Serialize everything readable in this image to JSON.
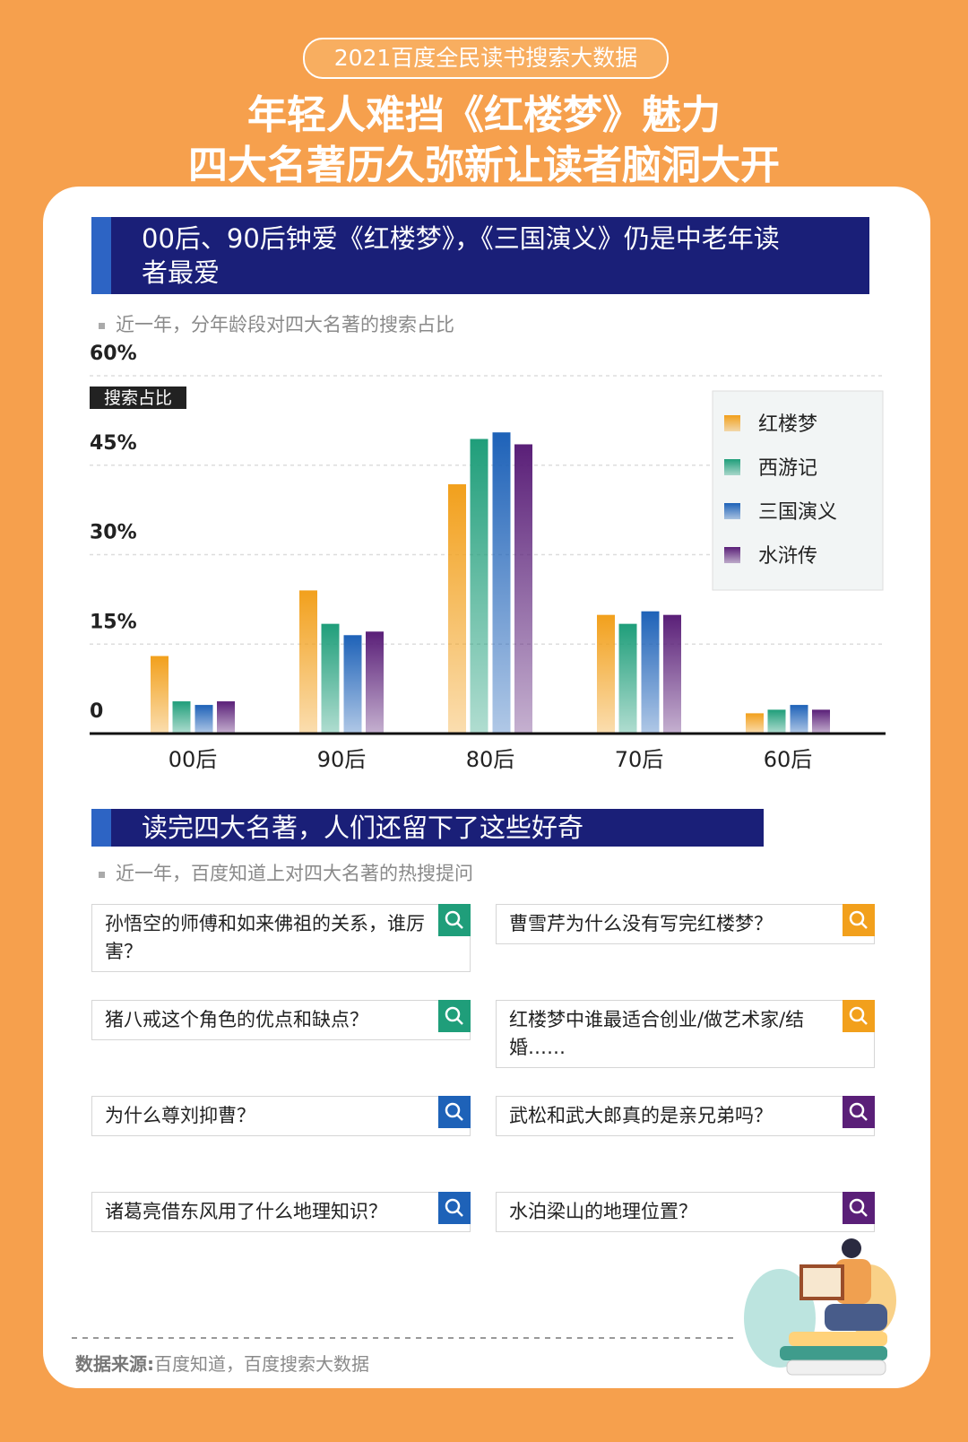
{
  "header": {
    "tag": "2021百度全民读书搜索大数据",
    "title": [
      "年轻人难挡《红楼梦》魅力",
      "四大名著历久弥新让读者脑洞大开"
    ]
  },
  "section1": {
    "title": "00后、90后钟爱《红楼梦》，《三国演义》仍是中老年读者最爱"
  },
  "chart_data": {
    "type": "bar",
    "subtitle": "近一年，分年龄段对四大名著的搜索占比",
    "y_label": "搜索占比",
    "categories": [
      "00后",
      "90后",
      "80后",
      "70后",
      "60后"
    ],
    "series": [
      {
        "name": "红楼梦",
        "color": "#f2a01c",
        "values": [
          13,
          24,
          41.8,
          19.9,
          3.4
        ]
      },
      {
        "name": "西游记",
        "color": "#1f9e7a",
        "values": [
          5.4,
          18.4,
          49.4,
          18.4,
          4
        ]
      },
      {
        "name": "三国演义",
        "color": "#1e62b8",
        "values": [
          4.8,
          16.5,
          50.5,
          20.5,
          4.8
        ]
      },
      {
        "name": "水浒传",
        "color": "#5a1f78",
        "values": [
          5.4,
          17.1,
          48.5,
          19.9,
          4
        ]
      }
    ],
    "ylim": [
      0,
      60
    ],
    "yticks": [
      0,
      {
        "value": 15,
        "label": "15%"
      },
      {
        "value": 30,
        "label": "30%"
      },
      {
        "value": 45,
        "label": "45%"
      },
      {
        "value": 60,
        "label": "60%"
      }
    ],
    "grid": true,
    "legend": "upper right"
  },
  "section2": {
    "title": "读完四大名著，人们还留下了这些好奇",
    "subtitle": "近一年，百度知道上对四大名著的热搜提问",
    "questions": [
      {
        "text": "孙悟空的师傅和如来佛祖的关系，谁厉害？",
        "color": "#1f9e7a"
      },
      {
        "text": "曹雪芹为什么没有写完红楼梦？",
        "color": "#f2a01c"
      },
      {
        "text": "猪八戒这个角色的优点和缺点？",
        "color": "#1f9e7a"
      },
      {
        "text": "红楼梦中谁最适合创业/做艺术家/结婚……",
        "color": "#f2a01c"
      },
      {
        "text": "为什么尊刘抑曹？",
        "color": "#1e62b8"
      },
      {
        "text": "武松和武大郎真的是亲兄弟吗？",
        "color": "#5a1f78"
      },
      {
        "text": "诸葛亮借东风用了什么地理知识？",
        "color": "#1e62b8"
      },
      {
        "text": "水泊梁山的地理位置？",
        "color": "#5a1f78"
      }
    ]
  },
  "source": {
    "label": "数据来源:",
    "text": "百度知道，百度搜索大数据"
  }
}
